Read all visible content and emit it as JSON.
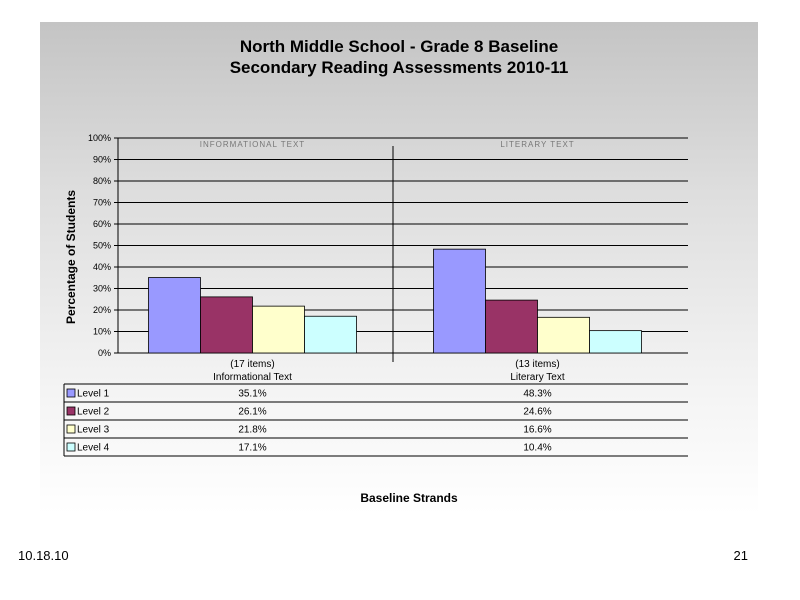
{
  "slide": {
    "date": "10.18.10",
    "page_number": "21"
  },
  "chart_data": {
    "type": "bar",
    "title": "North Middle School - Grade 8 Baseline",
    "subtitle": "Secondary Reading Assessments 2010-11",
    "ylabel": "Percentage of Students",
    "xlabel": "Baseline Strands",
    "ylim": [
      0,
      100
    ],
    "yticks": [
      "0%",
      "10%",
      "20%",
      "30%",
      "40%",
      "50%",
      "60%",
      "70%",
      "80%",
      "90%",
      "100%"
    ],
    "categories": [
      {
        "count": "(17 items)",
        "name": "Informational Text",
        "panel_header": "INFORMATIONAL TEXT"
      },
      {
        "count": "(13 items)",
        "name": "Literary Text",
        "panel_header": "LITERARY TEXT"
      }
    ],
    "series": [
      {
        "name": "Level 1",
        "color": "#9999ff",
        "values": [
          35.1,
          48.3
        ],
        "labels": [
          "35.1%",
          "48.3%"
        ]
      },
      {
        "name": "Level 2",
        "color": "#993366",
        "values": [
          26.1,
          24.6
        ],
        "labels": [
          "26.1%",
          "24.6%"
        ]
      },
      {
        "name": "Level 3",
        "color": "#ffffcc",
        "values": [
          21.8,
          16.6
        ],
        "labels": [
          "21.8%",
          "16.6%"
        ]
      },
      {
        "name": "Level 4",
        "color": "#ccffff",
        "values": [
          17.1,
          10.4
        ],
        "labels": [
          "17.1%",
          "10.4%"
        ]
      }
    ],
    "grid": true,
    "legend": "data-table"
  }
}
